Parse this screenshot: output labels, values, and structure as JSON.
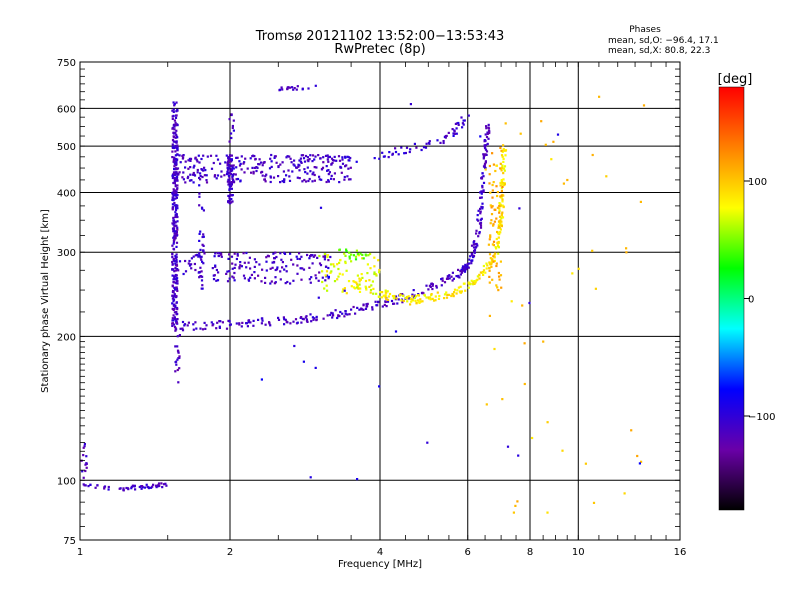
{
  "chart_data": {
    "type": "scatter",
    "title": "Tromsø 20121102 13:52:00−13:53:43",
    "subtitle": "RwPretec (8p)",
    "xlabel": "Frequency [MHz]",
    "ylabel": "Stationary phase Virtual Height [km]",
    "x_scale": "log",
    "y_scale": "log",
    "xlim": [
      1,
      16
    ],
    "ylim": [
      75,
      750
    ],
    "x_ticks": [
      1,
      2,
      4,
      6,
      8,
      10,
      16
    ],
    "x_tick_labels": [
      "1",
      "2",
      "4",
      "6",
      "8",
      "10",
      "16"
    ],
    "y_ticks": [
      75,
      100,
      200,
      300,
      400,
      500,
      600,
      750
    ],
    "y_tick_labels": [
      "75",
      "100",
      "200",
      "300",
      "400",
      "500",
      "600",
      "750"
    ],
    "grid": true,
    "stats": {
      "heading": "Phases",
      "line_o": "mean, sd,O: −96.4, 17.1",
      "line_x": "mean, sd,X:  80.8, 22.3"
    },
    "colorbar": {
      "label": "[deg]",
      "range": [
        -180,
        180
      ],
      "ticks": [
        100,
        0,
        -100
      ],
      "tick_labels": [
        "100",
        "0",
        "−100"
      ],
      "colors": [
        "#000000",
        "#6a00a8",
        "#0000ff",
        "#00ffff",
        "#00ff00",
        "#ffff00",
        "#ff8000",
        "#ff0000"
      ]
    },
    "series": [
      {
        "kind": "vertical",
        "x": 1.55,
        "y_range": [
          210,
          620
        ],
        "phase": -110,
        "count": 320
      },
      {
        "kind": "vertical",
        "x": 1.57,
        "y_range": [
          160,
          210
        ],
        "phase": -115,
        "count": 20
      },
      {
        "kind": "vertical",
        "x": 1.02,
        "y_range": [
          100,
          120
        ],
        "phase": -110,
        "count": 14
      },
      {
        "kind": "line",
        "from": [
          1.01,
          98
        ],
        "to": [
          1.15,
          96
        ],
        "phase": -110,
        "count": 14
      },
      {
        "kind": "line",
        "from": [
          1.2,
          96
        ],
        "to": [
          1.5,
          98
        ],
        "phase": -110,
        "count": 40
      },
      {
        "kind": "vertical",
        "x": 2.0,
        "y_range": [
          380,
          480
        ],
        "phase": -110,
        "count": 80
      },
      {
        "kind": "vertical",
        "x": 2.02,
        "y_range": [
          510,
          590
        ],
        "phase": -110,
        "count": 10
      },
      {
        "kind": "vertical",
        "x": 1.75,
        "y_range": [
          250,
          460
        ],
        "phase": -105,
        "count": 40
      },
      {
        "kind": "band",
        "x_range": [
          1.55,
          3.5
        ],
        "y_range": [
          420,
          480
        ],
        "phase": -110,
        "count": 260
      },
      {
        "kind": "band",
        "x_range": [
          1.55,
          3.2
        ],
        "y_range": [
          258,
          300
        ],
        "phase": -110,
        "count": 180
      },
      {
        "kind": "curve",
        "points": [
          [
            1.55,
            210
          ],
          [
            2.0,
            212
          ],
          [
            2.6,
            216
          ],
          [
            3.2,
            222
          ],
          [
            3.8,
            230
          ],
          [
            4.5,
            242
          ],
          [
            5.2,
            256
          ],
          [
            5.8,
            272
          ],
          [
            6.1,
            290
          ],
          [
            6.3,
            330
          ],
          [
            6.4,
            400
          ],
          [
            6.5,
            480
          ],
          [
            6.6,
            560
          ]
        ],
        "phase": -110,
        "count": 330
      },
      {
        "kind": "curve",
        "points": [
          [
            3.0,
            470
          ],
          [
            3.5,
            470
          ],
          [
            4.0,
            480
          ],
          [
            4.5,
            492
          ],
          [
            5.0,
            505
          ],
          [
            5.4,
            520
          ],
          [
            5.7,
            545
          ],
          [
            5.9,
            570
          ]
        ],
        "phase": -105,
        "count": 70
      },
      {
        "kind": "curve",
        "points": [
          [
            3.5,
            258
          ],
          [
            4.0,
            246
          ],
          [
            4.6,
            238
          ],
          [
            5.2,
            242
          ],
          [
            5.8,
            250
          ],
          [
            6.2,
            262
          ],
          [
            6.6,
            280
          ],
          [
            6.9,
            310
          ],
          [
            7.0,
            360
          ],
          [
            7.05,
            420
          ],
          [
            7.1,
            500
          ]
        ],
        "phase": 85,
        "count": 230
      },
      {
        "kind": "band",
        "x_range": [
          3.0,
          4.0
        ],
        "y_range": [
          245,
          300
        ],
        "phase": 75,
        "count": 70
      },
      {
        "kind": "band",
        "x_range": [
          3.3,
          3.8
        ],
        "y_range": [
          290,
          305
        ],
        "phase": 45,
        "count": 20
      },
      {
        "kind": "band",
        "x_range": [
          6.6,
          7.05
        ],
        "y_range": [
          250,
          500
        ],
        "phase": 110,
        "count": 70
      },
      {
        "kind": "line",
        "from": [
          2.5,
          660
        ],
        "to": [
          3.0,
          665
        ],
        "phase": -110,
        "count": 18
      },
      {
        "kind": "scatter",
        "x_range": [
          6.5,
          14
        ],
        "y_range": [
          80,
          650
        ],
        "phase": 100,
        "count": 45
      },
      {
        "kind": "scatter",
        "x_range": [
          2.0,
          14
        ],
        "y_range": [
          90,
          640
        ],
        "phase": -90,
        "count": 22
      }
    ]
  }
}
